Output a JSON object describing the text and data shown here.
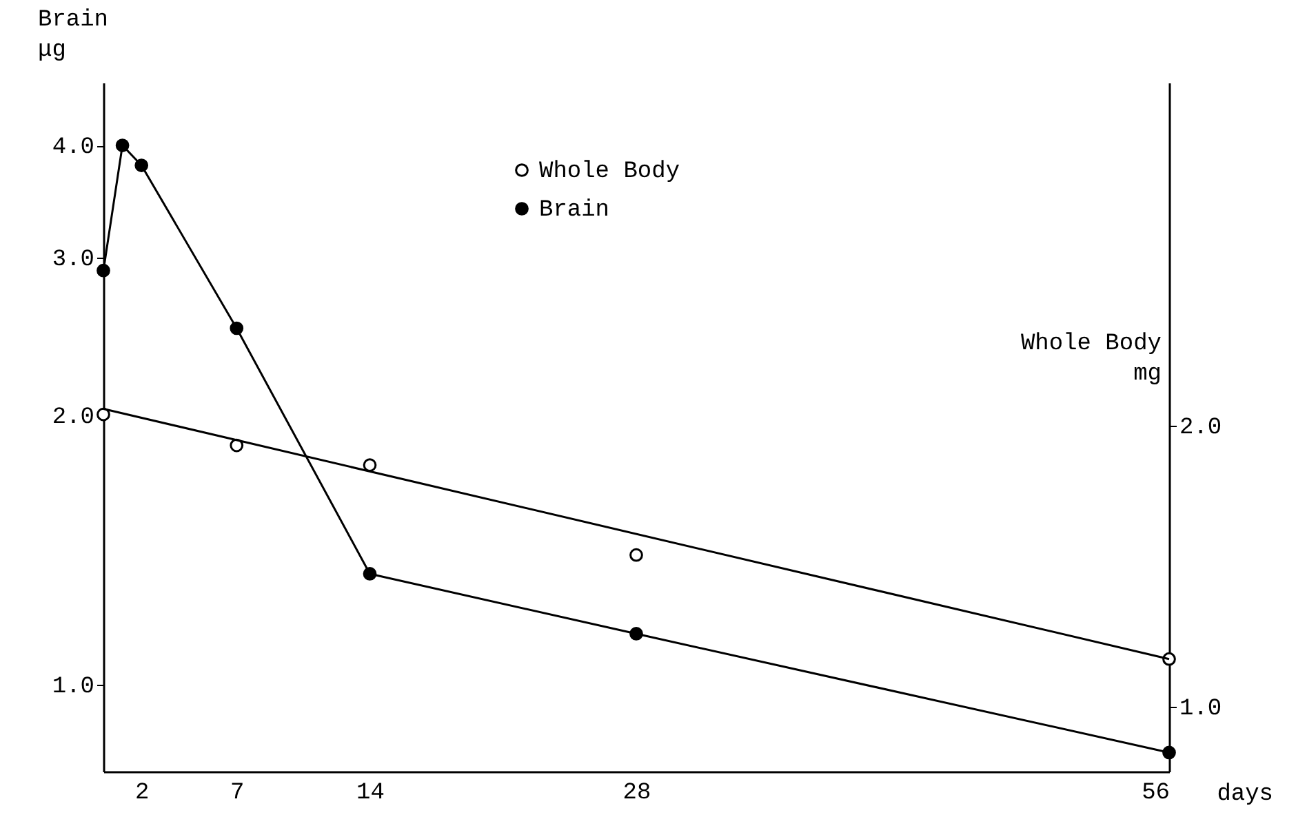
{
  "chart_data": {
    "type": "line",
    "xlabel": "days",
    "ylabel": "Brain μg",
    "y2label": "Whole Body mg",
    "x": [
      0,
      1,
      2,
      7,
      14,
      28,
      56
    ],
    "series": [
      {
        "name": "Whole Body",
        "type": "scatter",
        "axis": "y2",
        "color": "#000000",
        "x": [
          0,
          7,
          14,
          28,
          56
        ],
        "values": [
          2.04,
          1.93,
          1.86,
          1.54,
          1.17
        ]
      },
      {
        "type": "line",
        "axis": "y2",
        "color": "#000000",
        "marker": "none",
        "x": [
          0,
          56
        ],
        "values": [
          2.06,
          1.17
        ]
      },
      {
        "name": "Brain",
        "type": "line",
        "color": "#000000",
        "values": [
          2.9,
          4.0,
          3.8,
          2.5,
          1.33,
          1.14,
          0.84
        ]
      }
    ],
    "xlim": [
      0,
      56
    ],
    "xticks": [
      2,
      7,
      14,
      28,
      56
    ],
    "ylim": [
      0.8,
      4.7
    ],
    "yticks": [
      {
        "value": 1,
        "label": "1.0"
      },
      {
        "value": 2,
        "label": "2.0"
      },
      {
        "value": 3,
        "label": "3.0"
      },
      {
        "value": 4,
        "label": "4.0"
      }
    ],
    "y2lim": [
      0.77,
      3.22
    ],
    "y2ticks": [
      {
        "value": 1,
        "label": "1.0"
      },
      {
        "value": 2,
        "label": "2.0"
      }
    ],
    "log": "y",
    "marker": "circle",
    "legend": "top",
    "grid": false
  }
}
